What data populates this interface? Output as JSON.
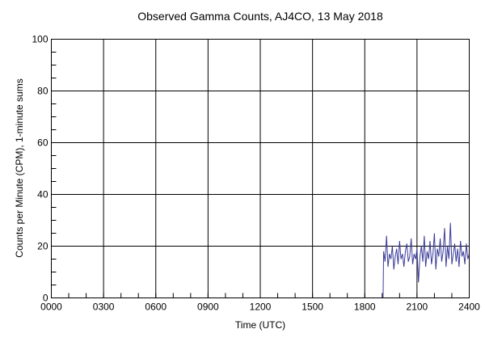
{
  "chart_data": {
    "type": "line",
    "title": "Observed Gamma Counts, AJ4CO, 13 May 2018",
    "xlabel": "Time (UTC)",
    "ylabel": "Counts per Minute (CPM), 1-minute sums",
    "x_tick_labels": [
      "0000",
      "0300",
      "0600",
      "0900",
      "1200",
      "1500",
      "1800",
      "2100",
      "2400"
    ],
    "y_tick_labels": [
      "0",
      "20",
      "40",
      "60",
      "80",
      "100"
    ],
    "xlim": [
      "0000",
      "2400"
    ],
    "ylim": [
      0,
      100
    ],
    "grid": true,
    "line_color": "#3a3a9a",
    "series": [
      {
        "x": [
          "1903",
          "1905",
          "1910",
          "1915",
          "1920",
          "1925",
          "1930",
          "1935",
          "1940",
          "1945",
          "1950",
          "1955",
          "2000",
          "2005",
          "2010",
          "2015",
          "2020",
          "2025",
          "2030",
          "2035",
          "2040",
          "2045",
          "2050",
          "2055",
          "2100",
          "2105",
          "2110",
          "2115",
          "2120",
          "2125",
          "2130",
          "2135",
          "2140",
          "2145",
          "2150",
          "2155",
          "2200",
          "2205",
          "2210",
          "2215",
          "2220",
          "2225",
          "2230",
          "2235",
          "2240",
          "2245",
          "2250",
          "2255",
          "2300",
          "2305",
          "2310",
          "2315",
          "2320",
          "2325",
          "2330",
          "2335",
          "2340",
          "2345",
          "2350",
          "2355",
          "2400"
        ],
        "values": [
          0,
          18,
          14,
          24,
          12,
          17,
          15,
          20,
          11,
          16,
          19,
          13,
          22,
          15,
          17,
          12,
          18,
          21,
          14,
          16,
          23,
          13,
          17,
          15,
          19,
          6,
          16,
          20,
          14,
          24,
          12,
          18,
          15,
          22,
          13,
          17,
          25,
          11,
          19,
          16,
          23,
          14,
          18,
          27,
          12,
          20,
          15,
          29,
          13,
          17,
          21,
          14,
          19,
          12,
          22,
          16,
          18,
          13,
          21,
          15,
          17
        ]
      }
    ]
  }
}
